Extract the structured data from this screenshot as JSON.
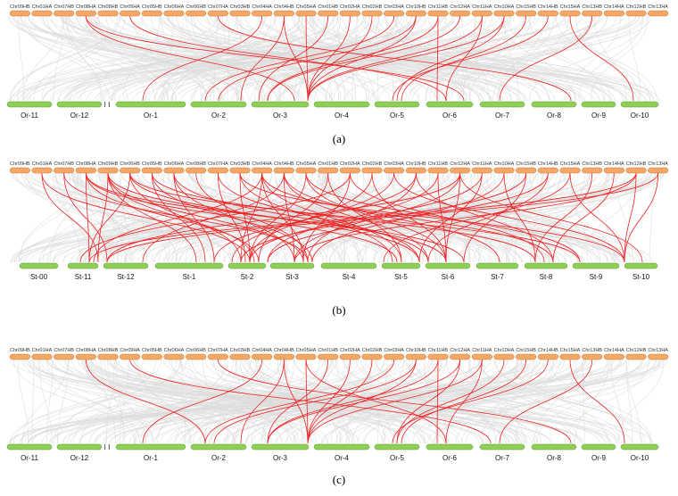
{
  "panels": [
    {
      "id": "a",
      "label": "(a)",
      "top_chromosomes": [
        "Chr09HB",
        "Chr01HA",
        "Chr07HB",
        "Chr08HA",
        "Chr08HB",
        "Chr09HA",
        "Chr05HB",
        "Chr06HA",
        "Chr06HB",
        "Chr07HA",
        "Chr03HB",
        "Chr04HA",
        "Chr04HB",
        "Chr05HA",
        "Chr01HB",
        "Chr02HA",
        "Chr02HB",
        "Chr03HA",
        "Chr10HB",
        "Chr11HB",
        "Chr12HA",
        "Chr11HA",
        "Chr10HA",
        "Chr15HB",
        "Chr14HB",
        "Chr15HA",
        "Chr13HB",
        "Chr14HA",
        "Chr12HB",
        "Chr13HA"
      ],
      "bottom_chromosomes": [
        "Or-11",
        "Or-12",
        "Or-1",
        "Or-2",
        "Or-3",
        "Or-4",
        "Or-5",
        "Or-6",
        "Or-7",
        "Or-8",
        "Or-9",
        "Or-10"
      ],
      "break_marker": "I I"
    },
    {
      "id": "b",
      "label": "(b)",
      "top_chromosomes": [
        "Chr09HB",
        "Chr01HA",
        "Chr07HB",
        "Chr08HA",
        "Chr09HB",
        "Chr06HB",
        "Chr05HB",
        "Chr06HA",
        "Chr08HB",
        "Chr07HA",
        "Chr03HB",
        "Chr04HA",
        "Chr04HB",
        "Chr05HA",
        "Chr01HB",
        "Chr02HA",
        "Chr02HB",
        "Chr03HA",
        "Chr10HB",
        "Chr11HB",
        "Chr12HA",
        "Chr11HA",
        "Chr10HA",
        "Chr15HB",
        "Chr14HB",
        "Chr15HA",
        "Chr13HB",
        "Chr14HA",
        "Chr12HB",
        "Chr13HA"
      ],
      "bottom_chromosomes": [
        "St-00",
        "St-11",
        "St-12",
        "St-1",
        "St-2",
        "St-3",
        "St-4",
        "St-5",
        "St-6",
        "St-7",
        "St-8",
        "St-9",
        "St-10"
      ],
      "break_marker": ""
    },
    {
      "id": "c",
      "label": "(c)",
      "top_chromosomes": [
        "Chr09HB",
        "Chr01HA",
        "Chr07HB",
        "Chr08HA",
        "Chr08HB",
        "Chr09HA",
        "Chr05HB",
        "Chr06HA",
        "Chr06HB",
        "Chr07HA",
        "Chr03HB",
        "Chr04HA",
        "Chr04HB",
        "Chr05HA",
        "Chr01HB",
        "Chr02HA",
        "Chr02HB",
        "Chr03HA",
        "Chr10HB",
        "Chr11HB",
        "Chr12HA",
        "Chr11HA",
        "Chr10HA",
        "Chr15HB",
        "Chr14HB",
        "Chr15HA",
        "Chr13HB",
        "Chr14HA",
        "Chr12HB",
        "Chr13HA"
      ],
      "bottom_chromosomes": [
        "Or-11",
        "Or-12",
        "Or-1",
        "Or-2",
        "Or-3",
        "Or-4",
        "Or-5",
        "Or-6",
        "Or-7",
        "Or-8",
        "Or-9",
        "Or-10"
      ],
      "break_marker": "I I"
    }
  ],
  "colors": {
    "top_chromosome": "#f5a866",
    "bottom_chromosome": "#8fce57",
    "syntenic_link": "#ee2222",
    "background_link": "#dcdcdc"
  }
}
